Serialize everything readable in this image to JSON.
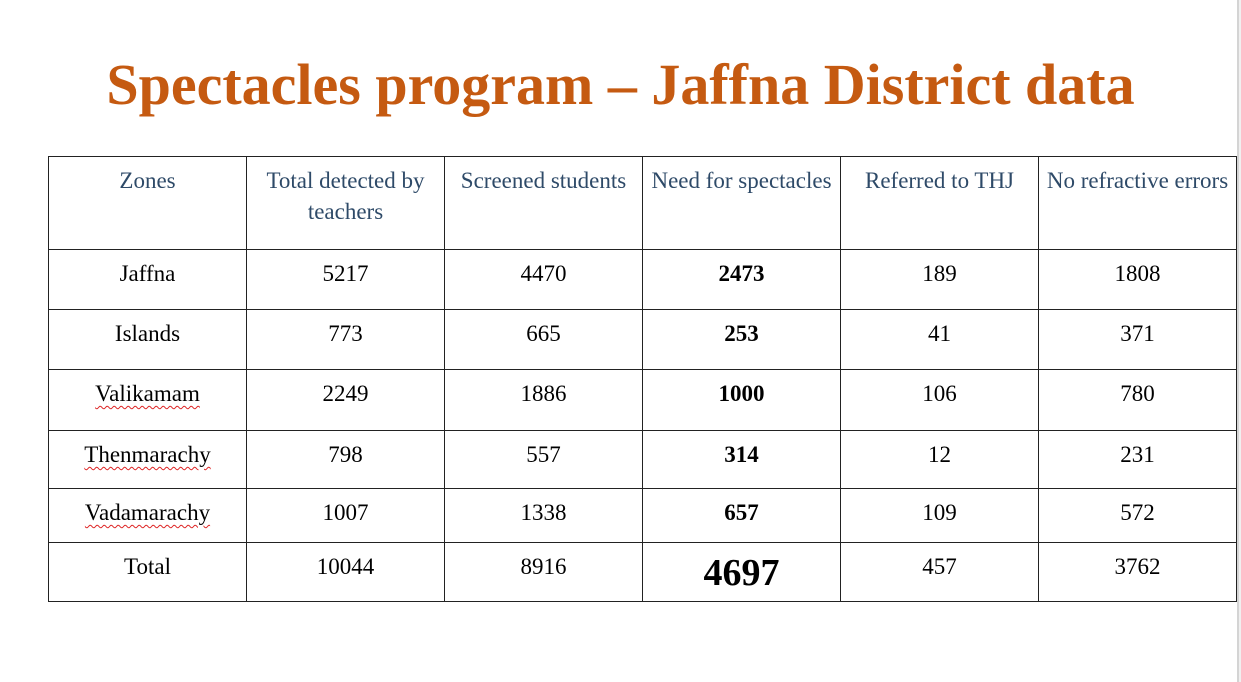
{
  "title": "Spectacles program – Jaffna District data",
  "table": {
    "headers": [
      "Zones",
      "Total detected by teachers",
      "Screened students",
      "Need for spectacles",
      "Referred to THJ",
      "No refractive errors"
    ],
    "rows": [
      [
        "Jaffna",
        "5217",
        "4470",
        "2473",
        "189",
        "1808"
      ],
      [
        "Islands",
        "773",
        "665",
        "253",
        "41",
        "371"
      ],
      [
        "Valikamam",
        "2249",
        "1886",
        "1000",
        "106",
        "780"
      ],
      [
        "Thenmarachy",
        "798",
        "557",
        "314",
        "12",
        "231"
      ],
      [
        "Vadamarachy",
        "1007",
        "1338",
        "657",
        "109",
        "572"
      ],
      [
        "Total",
        "10044",
        "8916",
        "4697",
        "457",
        "3762"
      ]
    ]
  },
  "colors": {
    "title": "#c55a11",
    "header_text": "#2e4a68"
  }
}
